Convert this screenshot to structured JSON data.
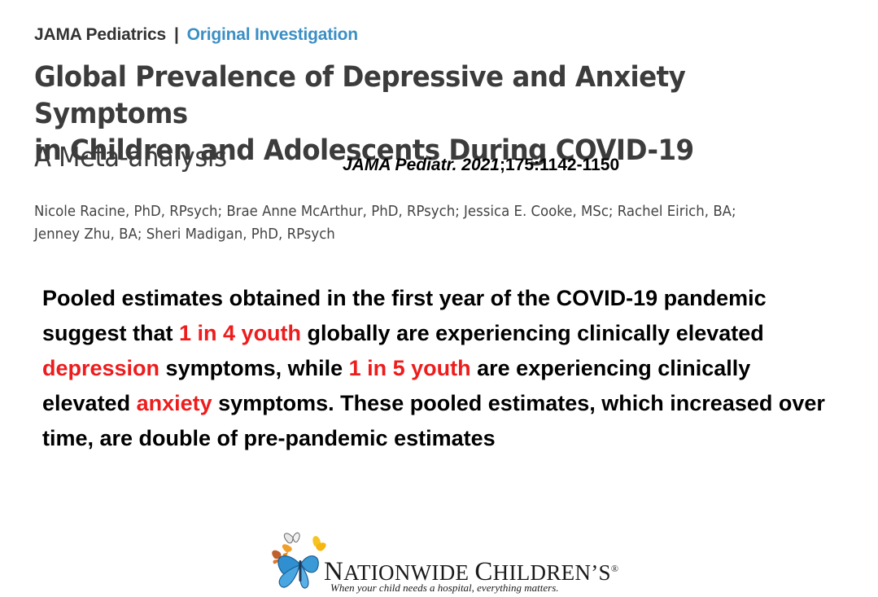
{
  "header": {
    "journal": "JAMA Pediatrics",
    "separator": "|",
    "section": "Original Investigation"
  },
  "article": {
    "title_line1": "Global Prevalence of Depressive and Anxiety Symptoms",
    "title_line2": "in Children and Adolescents During COVID-19",
    "subtitle": "A Meta-analysis",
    "citation_journal_year": "JAMA Pediatr. 2021",
    "citation_rest": ";175:1142-1150",
    "authors_line1": "Nicole Racine, PhD, RPsych; Brae Anne McArthur, PhD, RPsych; Jessica E. Cooke, MSc; Rachel Eirich, BA;",
    "authors_line2": "Jenney Zhu, BA; Sheri Madigan, PhD, RPsych"
  },
  "summary": {
    "part1": "Pooled estimates obtained in the first year of the COVID-19 pandemic suggest that ",
    "hl1": "1 in 4 youth",
    "part2": " globally are experiencing clinically elevated ",
    "hl2": "depression",
    "part3": " symptoms, while ",
    "hl3": "1 in 5 youth",
    "part4": " are experiencing clinically elevated ",
    "hl4": "anxiety",
    "part5": " symptoms. These pooled estimates, which increased over time, are double of pre-pandemic estimates"
  },
  "logo": {
    "brand_cap1": "N",
    "brand_rest1": "ATIONWIDE ",
    "brand_cap2": "C",
    "brand_rest2": "HILDREN’S",
    "registered": "®",
    "tagline": "When your child needs a hospital, everything matters.",
    "colors": {
      "butterfly_blue": "#2f8fd0",
      "butterfly_orange": "#f0a02a",
      "butterfly_yellow": "#f7c320",
      "butterfly_brown": "#c0602a"
    }
  },
  "colors": {
    "section_blue": "#3b8fc4",
    "title_gray": "#3c3c3c",
    "highlight_red": "#ee1c1c"
  }
}
